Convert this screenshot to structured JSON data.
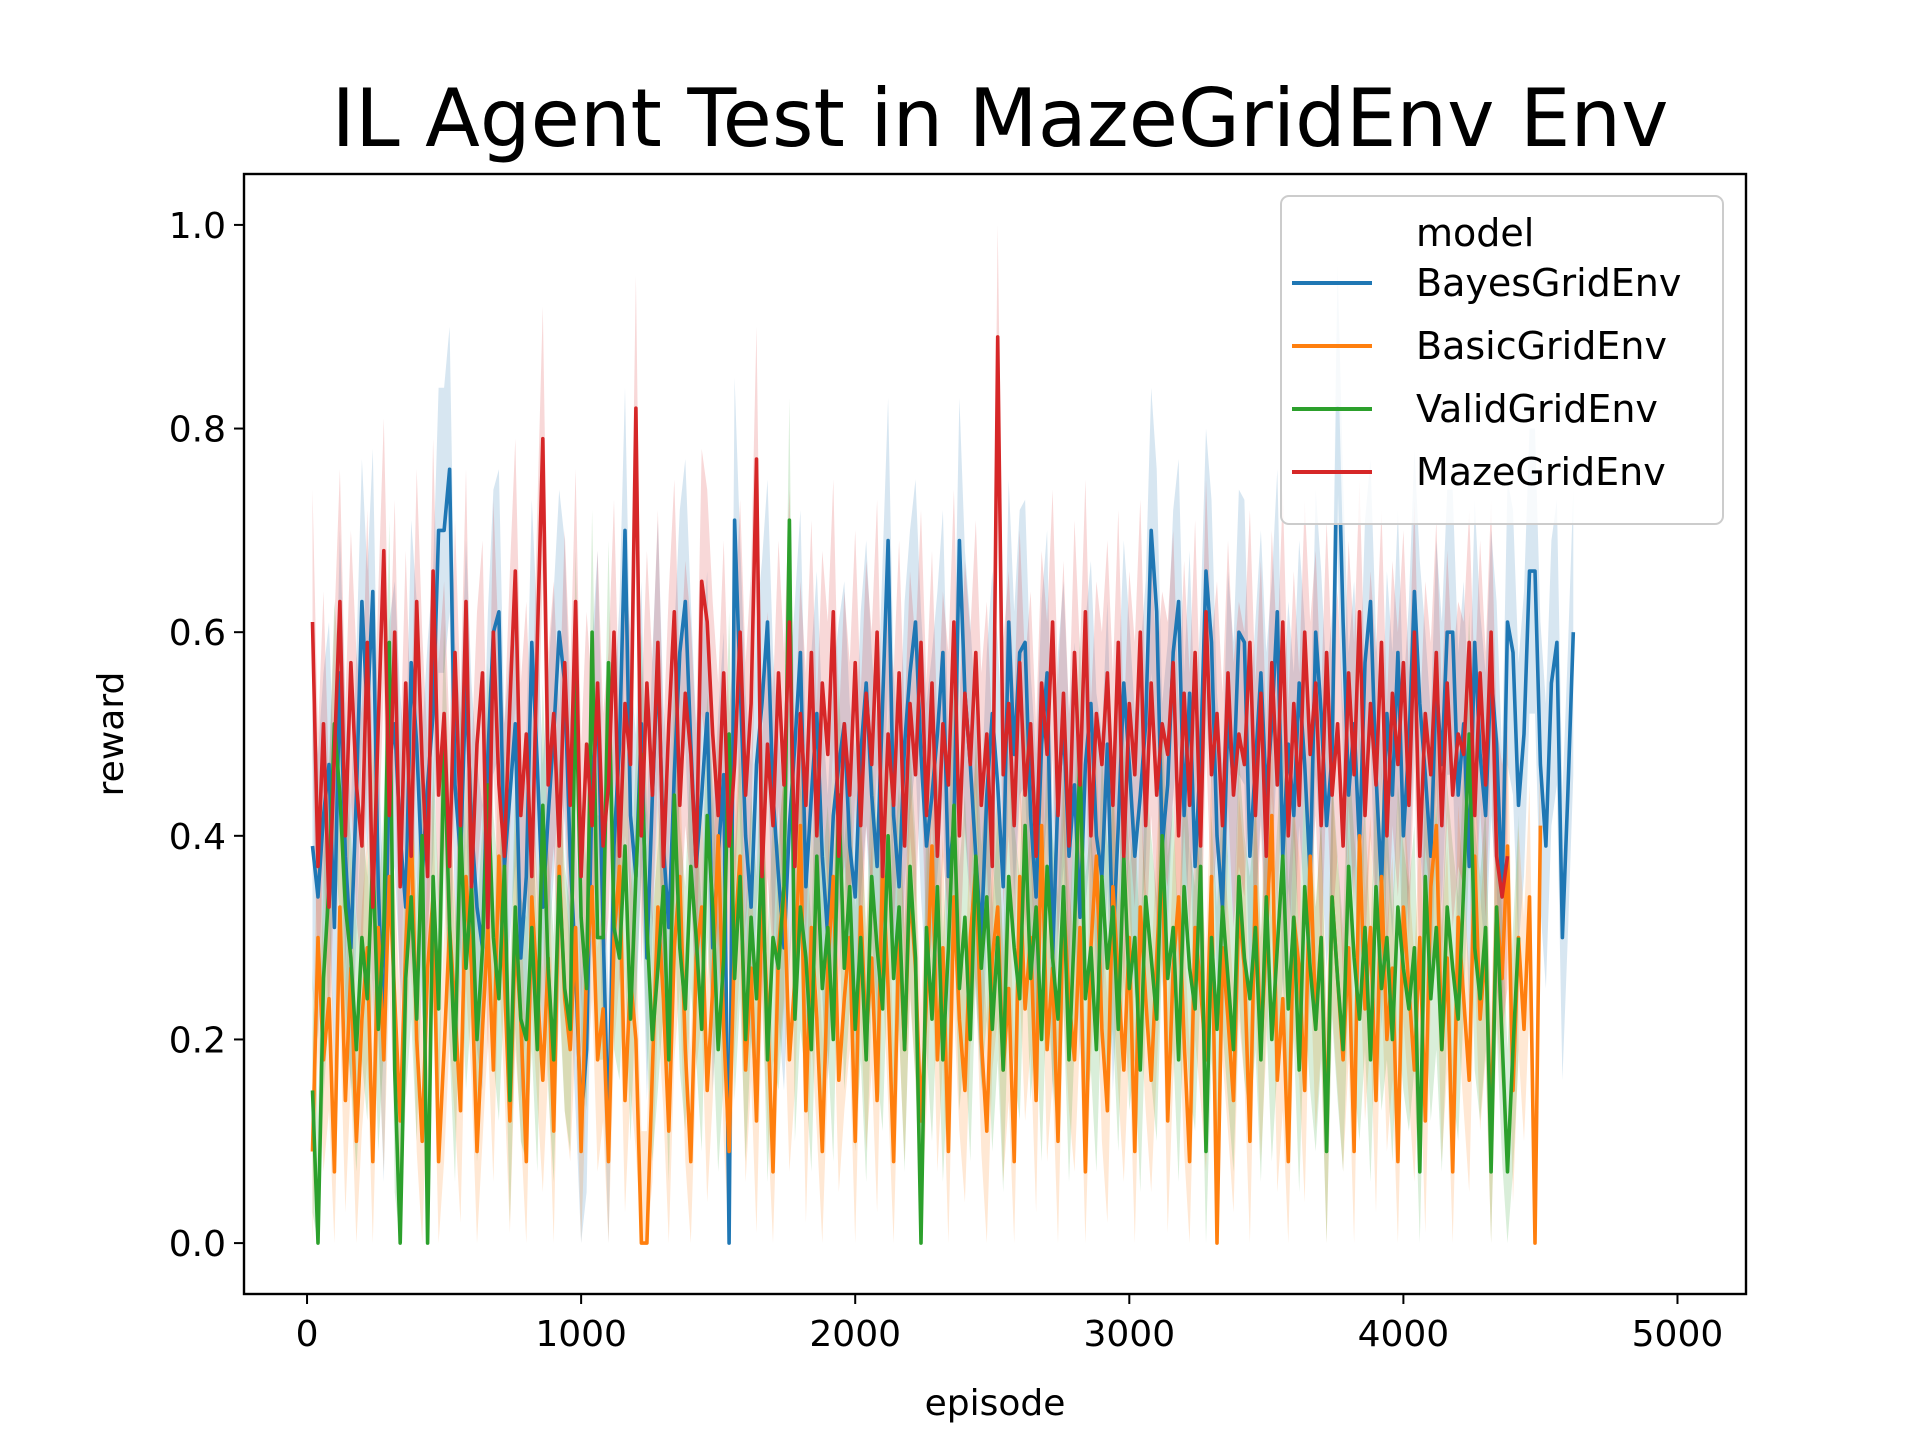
{
  "chart_data": {
    "type": "line",
    "title": "IL Agent Test in MazeGridEnv Env",
    "xlabel": "episode",
    "ylabel": "reward",
    "xlim": [
      -230,
      5250
    ],
    "ylim": [
      -0.05,
      1.05
    ],
    "xticks": [
      0,
      1000,
      2000,
      3000,
      4000,
      5000
    ],
    "xtick_labels": [
      "0",
      "1000",
      "2000",
      "3000",
      "4000",
      "5000"
    ],
    "yticks": [
      0.0,
      0.2,
      0.4,
      0.6,
      0.8,
      1.0
    ],
    "ytick_labels": [
      "0.0",
      "0.2",
      "0.4",
      "0.6",
      "0.8",
      "1.0"
    ],
    "grid": false,
    "legend": {
      "title": "model",
      "placement": "top-right"
    },
    "x_step": 20,
    "x_start": 20,
    "series": [
      {
        "name": "BayesGridEnv",
        "color": "#1f77b4",
        "ci_halfwidth": 0.14,
        "values": [
          0.39,
          0.34,
          0.42,
          0.47,
          0.31,
          0.56,
          0.38,
          0.29,
          0.44,
          0.63,
          0.52,
          0.64,
          0.35,
          0.2,
          0.47,
          0.51,
          0.4,
          0.33,
          0.57,
          0.49,
          0.36,
          0.45,
          0.52,
          0.7,
          0.7,
          0.76,
          0.45,
          0.38,
          0.55,
          0.41,
          0.33,
          0.29,
          0.48,
          0.6,
          0.62,
          0.37,
          0.44,
          0.51,
          0.28,
          0.36,
          0.59,
          0.47,
          0.33,
          0.42,
          0.5,
          0.6,
          0.55,
          0.38,
          0.27,
          0.12,
          0.19,
          0.45,
          0.54,
          0.31,
          0.1,
          0.39,
          0.49,
          0.7,
          0.42,
          0.36,
          0.51,
          0.28,
          0.44,
          0.57,
          0.39,
          0.31,
          0.46,
          0.58,
          0.63,
          0.49,
          0.37,
          0.44,
          0.52,
          0.29,
          0.38,
          0.46,
          0.0,
          0.71,
          0.55,
          0.4,
          0.33,
          0.47,
          0.53,
          0.61,
          0.44,
          0.36,
          0.29,
          0.41,
          0.49,
          0.58,
          0.35,
          0.44,
          0.52,
          0.38,
          0.3,
          0.42,
          0.47,
          0.51,
          0.39,
          0.34,
          0.48,
          0.55,
          0.44,
          0.37,
          0.53,
          0.69,
          0.42,
          0.35,
          0.49,
          0.56,
          0.61,
          0.48,
          0.39,
          0.44,
          0.5,
          0.58,
          0.36,
          0.41,
          0.69,
          0.54,
          0.47,
          0.38,
          0.3,
          0.44,
          0.52,
          0.45,
          0.35,
          0.61,
          0.48,
          0.58,
          0.59,
          0.42,
          0.34,
          0.49,
          0.56,
          0.28,
          0.44,
          0.51,
          0.38,
          0.45,
          0.32,
          0.47,
          0.53,
          0.4,
          0.36,
          0.49,
          0.29,
          0.41,
          0.55,
          0.47,
          0.38,
          0.44,
          0.51,
          0.7,
          0.62,
          0.39,
          0.45,
          0.58,
          0.63,
          0.42,
          0.54,
          0.37,
          0.48,
          0.66,
          0.59,
          0.4,
          0.33,
          0.52,
          0.45,
          0.6,
          0.59,
          0.38,
          0.47,
          0.56,
          0.44,
          0.51,
          0.62,
          0.38,
          0.49,
          0.42,
          0.55,
          0.47,
          0.36,
          0.6,
          0.52,
          0.41,
          0.48,
          0.82,
          0.61,
          0.44,
          0.51,
          0.39,
          0.57,
          0.63,
          0.46,
          0.35,
          0.52,
          0.44,
          0.58,
          0.4,
          0.49,
          0.64,
          0.53,
          0.46,
          0.38,
          0.55,
          0.47,
          0.6,
          0.6,
          0.44,
          0.51,
          0.37,
          0.59,
          0.48,
          0.42,
          0.56,
          0.49,
          0.34,
          0.61,
          0.58,
          0.43,
          0.5,
          0.66,
          0.66,
          0.47,
          0.39,
          0.55,
          0.59,
          0.3,
          0.44,
          0.6
        ]
      },
      {
        "name": "BasicGridEnv",
        "color": "#ff7f0e",
        "ci_halfwidth": 0.11,
        "values": [
          0.09,
          0.3,
          0.18,
          0.24,
          0.07,
          0.33,
          0.14,
          0.27,
          0.1,
          0.22,
          0.29,
          0.08,
          0.31,
          0.18,
          0.36,
          0.24,
          0.12,
          0.29,
          0.41,
          0.2,
          0.1,
          0.27,
          0.34,
          0.08,
          0.19,
          0.31,
          0.23,
          0.13,
          0.36,
          0.27,
          0.09,
          0.21,
          0.31,
          0.17,
          0.38,
          0.26,
          0.12,
          0.3,
          0.22,
          0.08,
          0.34,
          0.25,
          0.16,
          0.28,
          0.11,
          0.37,
          0.24,
          0.19,
          0.31,
          0.09,
          0.27,
          0.35,
          0.18,
          0.23,
          0.08,
          0.3,
          0.37,
          0.14,
          0.26,
          0.2,
          0.0,
          0.0,
          0.17,
          0.33,
          0.24,
          0.11,
          0.29,
          0.36,
          0.19,
          0.08,
          0.28,
          0.33,
          0.15,
          0.25,
          0.4,
          0.21,
          0.09,
          0.3,
          0.38,
          0.17,
          0.27,
          0.12,
          0.34,
          0.23,
          0.07,
          0.29,
          0.35,
          0.18,
          0.26,
          0.41,
          0.13,
          0.31,
          0.22,
          0.09,
          0.27,
          0.36,
          0.16,
          0.24,
          0.3,
          0.1,
          0.33,
          0.2,
          0.28,
          0.14,
          0.37,
          0.25,
          0.08,
          0.31,
          0.19,
          0.35,
          0.27,
          0.12,
          0.24,
          0.39,
          0.18,
          0.29,
          0.09,
          0.34,
          0.22,
          0.15,
          0.3,
          0.37,
          0.2,
          0.11,
          0.28,
          0.33,
          0.17,
          0.25,
          0.08,
          0.36,
          0.23,
          0.3,
          0.14,
          0.41,
          0.19,
          0.27,
          0.1,
          0.34,
          0.24,
          0.18,
          0.31,
          0.07,
          0.29,
          0.38,
          0.21,
          0.13,
          0.35,
          0.26,
          0.17,
          0.3,
          0.09,
          0.33,
          0.24,
          0.16,
          0.28,
          0.39,
          0.12,
          0.27,
          0.34,
          0.2,
          0.08,
          0.31,
          0.25,
          0.18,
          0.36,
          0.0,
          0.29,
          0.22,
          0.14,
          0.33,
          0.27,
          0.1,
          0.35,
          0.19,
          0.3,
          0.42,
          0.16,
          0.24,
          0.08,
          0.32,
          0.27,
          0.15,
          0.38,
          0.22,
          0.3,
          0.11,
          0.34,
          0.26,
          0.18,
          0.29,
          0.09,
          0.4,
          0.23,
          0.31,
          0.14,
          0.36,
          0.2,
          0.27,
          0.08,
          0.33,
          0.25,
          0.17,
          0.3,
          0.12,
          0.35,
          0.41,
          0.19,
          0.28,
          0.07,
          0.32,
          0.24,
          0.16,
          0.38,
          0.22,
          0.29,
          0.11,
          0.33,
          0.26,
          0.39,
          0.15,
          0.3,
          0.21,
          0.34,
          0.0,
          0.41
        ]
      },
      {
        "name": "ValidGridEnv",
        "color": "#2ca02c",
        "ci_halfwidth": 0.12,
        "values": [
          0.15,
          0.0,
          0.26,
          0.35,
          0.51,
          0.44,
          0.33,
          0.28,
          0.19,
          0.3,
          0.24,
          0.38,
          0.21,
          0.31,
          0.59,
          0.17,
          0.0,
          0.26,
          0.34,
          0.22,
          0.4,
          0.0,
          0.36,
          0.23,
          0.49,
          0.31,
          0.18,
          0.41,
          0.27,
          0.35,
          0.2,
          0.29,
          0.45,
          0.3,
          0.24,
          0.37,
          0.14,
          0.33,
          0.22,
          0.2,
          0.31,
          0.19,
          0.43,
          0.27,
          0.18,
          0.36,
          0.25,
          0.21,
          0.56,
          0.32,
          0.25,
          0.6,
          0.3,
          0.3,
          0.57,
          0.31,
          0.28,
          0.39,
          0.22,
          0.36,
          0.48,
          0.31,
          0.2,
          0.27,
          0.35,
          0.18,
          0.44,
          0.29,
          0.23,
          0.37,
          0.3,
          0.21,
          0.42,
          0.33,
          0.19,
          0.28,
          0.5,
          0.26,
          0.36,
          0.2,
          0.32,
          0.24,
          0.39,
          0.18,
          0.3,
          0.27,
          0.35,
          0.71,
          0.22,
          0.33,
          0.28,
          0.19,
          0.38,
          0.25,
          0.31,
          0.2,
          0.44,
          0.27,
          0.35,
          0.21,
          0.3,
          0.18,
          0.36,
          0.29,
          0.23,
          0.4,
          0.26,
          0.33,
          0.19,
          0.37,
          0.28,
          0.0,
          0.31,
          0.22,
          0.35,
          0.18,
          0.29,
          0.43,
          0.25,
          0.32,
          0.2,
          0.38,
          0.27,
          0.34,
          0.21,
          0.3,
          0.17,
          0.36,
          0.29,
          0.24,
          0.41,
          0.26,
          0.33,
          0.2,
          0.37,
          0.28,
          0.22,
          0.35,
          0.18,
          0.31,
          0.48,
          0.24,
          0.29,
          0.19,
          0.36,
          0.27,
          0.33,
          0.21,
          0.38,
          0.25,
          0.3,
          0.17,
          0.34,
          0.28,
          0.22,
          0.4,
          0.26,
          0.31,
          0.18,
          0.35,
          0.27,
          0.23,
          0.37,
          0.09,
          0.3,
          0.21,
          0.33,
          0.26,
          0.19,
          0.36,
          0.28,
          0.24,
          0.31,
          0.18,
          0.34,
          0.2,
          0.29,
          0.38,
          0.23,
          0.32,
          0.17,
          0.35,
          0.27,
          0.21,
          0.3,
          0.09,
          0.34,
          0.26,
          0.19,
          0.37,
          0.28,
          0.22,
          0.31,
          0.18,
          0.35,
          0.25,
          0.3,
          0.2,
          0.33,
          0.27,
          0.23,
          0.29,
          0.07,
          0.36,
          0.24,
          0.31,
          0.19,
          0.33,
          0.27,
          0.22,
          0.35,
          0.5,
          0.29,
          0.24,
          0.31,
          0.07,
          0.33,
          0.2,
          0.07,
          0.19,
          0.3
        ]
      },
      {
        "name": "MazeGridEnv",
        "color": "#d62728",
        "ci_halfwidth": 0.13,
        "values": [
          0.61,
          0.37,
          0.51,
          0.33,
          0.48,
          0.63,
          0.4,
          0.57,
          0.45,
          0.39,
          0.59,
          0.33,
          0.51,
          0.68,
          0.42,
          0.6,
          0.35,
          0.55,
          0.38,
          0.63,
          0.47,
          0.36,
          0.66,
          0.44,
          0.52,
          0.37,
          0.58,
          0.41,
          0.63,
          0.35,
          0.49,
          0.56,
          0.31,
          0.6,
          0.45,
          0.38,
          0.53,
          0.66,
          0.42,
          0.5,
          0.36,
          0.59,
          0.79,
          0.45,
          0.52,
          0.39,
          0.57,
          0.43,
          0.63,
          0.36,
          0.49,
          0.41,
          0.55,
          0.39,
          0.45,
          0.6,
          0.38,
          0.53,
          0.47,
          0.82,
          0.4,
          0.55,
          0.44,
          0.59,
          0.37,
          0.51,
          0.62,
          0.43,
          0.54,
          0.48,
          0.37,
          0.65,
          0.61,
          0.5,
          0.42,
          0.56,
          0.39,
          0.47,
          0.6,
          0.44,
          0.53,
          0.77,
          0.36,
          0.49,
          0.41,
          0.56,
          0.45,
          0.61,
          0.37,
          0.52,
          0.43,
          0.58,
          0.4,
          0.55,
          0.48,
          0.62,
          0.38,
          0.51,
          0.44,
          0.57,
          0.41,
          0.54,
          0.47,
          0.6,
          0.36,
          0.5,
          0.43,
          0.56,
          0.39,
          0.53,
          0.46,
          0.59,
          0.42,
          0.55,
          0.38,
          0.51,
          0.45,
          0.61,
          0.4,
          0.54,
          0.47,
          0.58,
          0.43,
          0.5,
          0.37,
          0.89,
          0.46,
          0.53,
          0.41,
          0.57,
          0.44,
          0.51,
          0.38,
          0.55,
          0.48,
          0.61,
          0.42,
          0.54,
          0.39,
          0.58,
          0.45,
          0.62,
          0.4,
          0.52,
          0.47,
          0.56,
          0.43,
          0.59,
          0.38,
          0.53,
          0.46,
          0.6,
          0.41,
          0.55,
          0.44,
          0.51,
          0.48,
          0.57,
          0.4,
          0.54,
          0.43,
          0.58,
          0.39,
          0.62,
          0.46,
          0.52,
          0.41,
          0.56,
          0.44,
          0.5,
          0.47,
          0.59,
          0.42,
          0.54,
          0.38,
          0.57,
          0.45,
          0.61,
          0.4,
          0.53,
          0.43,
          0.6,
          0.48,
          0.55,
          0.41,
          0.58,
          0.44,
          0.51,
          0.39,
          0.56,
          0.46,
          0.62,
          0.42,
          0.53,
          0.45,
          0.59,
          0.4,
          0.54,
          0.47,
          0.57,
          0.43,
          0.6,
          0.38,
          0.52,
          0.46,
          0.58,
          0.41,
          0.55,
          0.44,
          0.5,
          0.48,
          0.59,
          0.42,
          0.56,
          0.45,
          0.6,
          0.38,
          0.34,
          0.38
        ]
      }
    ]
  }
}
